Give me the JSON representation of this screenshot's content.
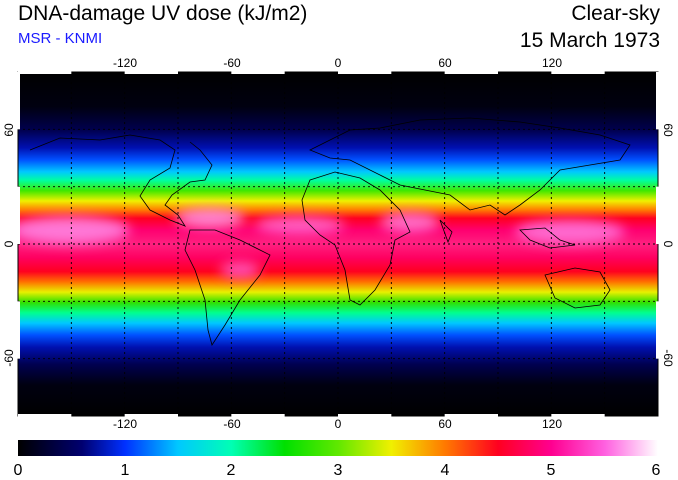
{
  "header": {
    "title": "DNA-damage UV dose (kJ/m2)",
    "source": "MSR - KNMI",
    "sky_condition": "Clear-sky",
    "date": "15 March 1973"
  },
  "colors": {
    "source_text": "#1a1aff",
    "frame": "#000000"
  },
  "map": {
    "projection": "equirectangular",
    "lon_ticks": [
      "-120",
      "-60",
      "0",
      "60",
      "120"
    ],
    "lat_ticks": [
      "60",
      "0",
      "-60"
    ],
    "graticule_lon": [
      -150,
      -120,
      -90,
      -60,
      -30,
      0,
      30,
      60,
      90,
      120,
      150
    ],
    "graticule_lat": [
      -60,
      -30,
      0,
      30,
      60
    ]
  },
  "colorbar": {
    "labels": [
      "0",
      "1",
      "2",
      "3",
      "4",
      "5",
      "6"
    ],
    "min": 0,
    "max": 6,
    "stops": [
      {
        "v": 0.0,
        "c": "#000000"
      },
      {
        "v": 0.6,
        "c": "#000070"
      },
      {
        "v": 1.0,
        "c": "#0030ff"
      },
      {
        "v": 1.5,
        "c": "#00c8ff"
      },
      {
        "v": 2.0,
        "c": "#00ffb4"
      },
      {
        "v": 2.5,
        "c": "#00e000"
      },
      {
        "v": 3.0,
        "c": "#60e800"
      },
      {
        "v": 3.5,
        "c": "#f0f000"
      },
      {
        "v": 4.0,
        "c": "#ff7a00"
      },
      {
        "v": 4.5,
        "c": "#ff0020"
      },
      {
        "v": 5.0,
        "c": "#ff0090"
      },
      {
        "v": 5.5,
        "c": "#ff60e0"
      },
      {
        "v": 6.0,
        "c": "#ffffff"
      }
    ]
  }
}
